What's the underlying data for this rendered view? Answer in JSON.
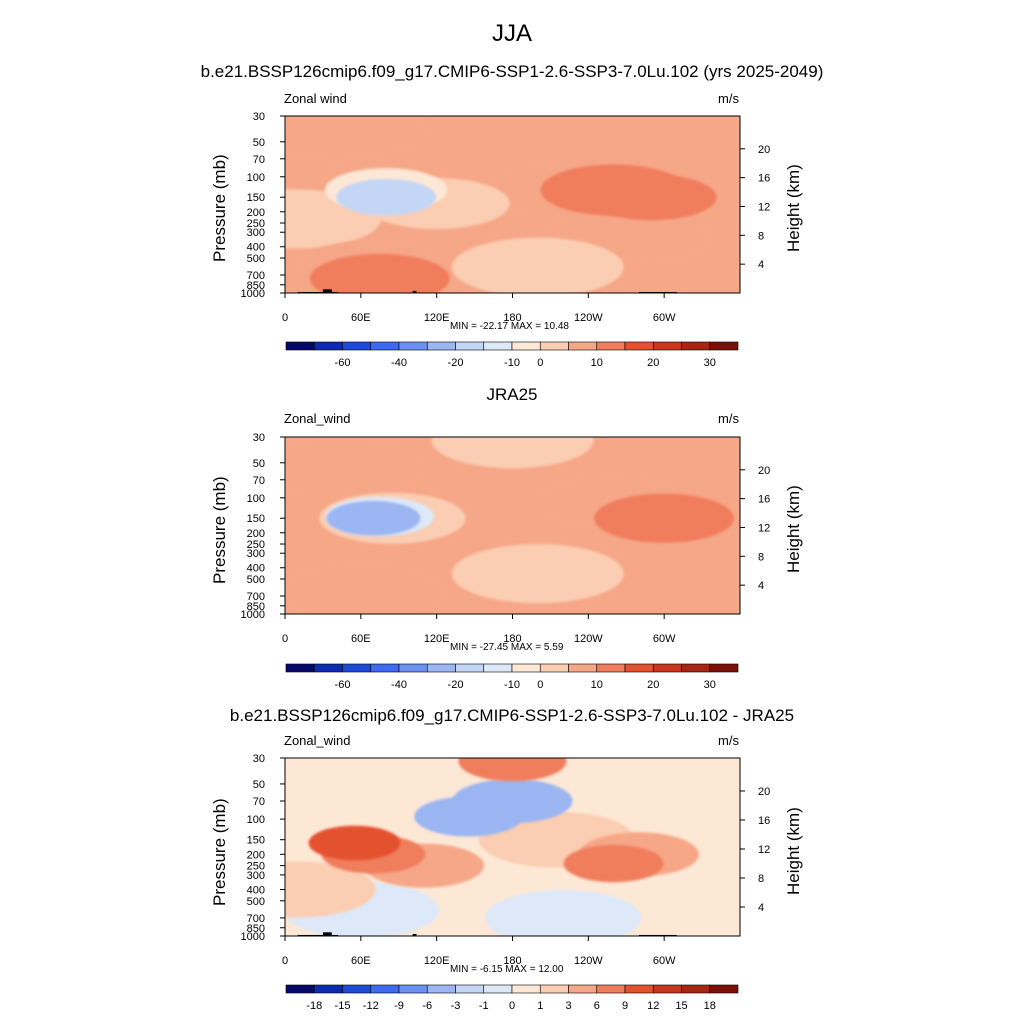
{
  "title": "JJA",
  "panels": [
    {
      "title": "b.e21.BSSP126cmip6.f09_g17.CMIP6-SSP1-2.6-SSP3-7.0Lu.102 (yrs 2025-2049)",
      "var_label": "Zonal wind",
      "units": "m/s",
      "stats": "MIN = -22.17  MAX =  10.48"
    },
    {
      "title": "JRA25",
      "var_label": "Zonal_wind",
      "units": "m/s",
      "stats": "MIN = -27.45  MAX =   5.59"
    },
    {
      "title": "b.e21.BSSP126cmip6.f09_g17.CMIP6-SSP1-2.6-SSP3-7.0Lu.102 - JRA25",
      "var_label": "Zonal_wind",
      "units": "m/s",
      "stats": "MIN =  -6.15  MAX =  12.00"
    }
  ],
  "axes": {
    "ylabel": "Pressure (mb)",
    "y2label": "Height (km)",
    "pressure_ticks": [
      "30",
      "50",
      "70",
      "100",
      "150",
      "200",
      "250",
      "300",
      "400",
      "500",
      "700",
      "850",
      "1000"
    ],
    "height_ticks": [
      "20",
      "16",
      "12",
      "8",
      "4"
    ],
    "lon_ticks": [
      "0",
      "60E",
      "120E",
      "180",
      "120W",
      "60W"
    ]
  },
  "colorbars": {
    "main_labels": [
      "-60",
      "-40",
      "-20",
      "-10",
      "0",
      "10",
      "20",
      "30"
    ],
    "diff_labels": [
      "-18",
      "-15",
      "-12",
      "-9",
      "-6",
      "-3",
      "-1",
      "0",
      "1",
      "3",
      "6",
      "9",
      "12",
      "15",
      "18"
    ],
    "colors": [
      "#08086b",
      "#0c2bb0",
      "#1e4ad8",
      "#3d6af0",
      "#6b92f2",
      "#9bb6f2",
      "#c4d6f5",
      "#dde9f8",
      "#fde8d6",
      "#fbcdb2",
      "#f6a788",
      "#f07e5d",
      "#e4512e",
      "#c8361c",
      "#a52612",
      "#7c1008"
    ]
  },
  "chart_data": [
    {
      "type": "heatmap",
      "title": "b.e21.BSSP126cmip6.f09_g17.CMIP6-SSP1-2.6-SSP3-7.0Lu.102 (yrs 2025-2049)",
      "variable": "Zonal wind",
      "units": "m/s",
      "x_axis": "longitude (0 to 360)",
      "y_axis": "pressure (mb), log scale, 30 to 1000",
      "min": -22.17,
      "max": 10.48,
      "features": [
        {
          "lon": 80,
          "pressure": 150,
          "value": -20
        },
        {
          "lon": 80,
          "pressure": 130,
          "value": -10
        },
        {
          "lon": 120,
          "pressure": 170,
          "value": -5
        },
        {
          "lon": 290,
          "pressure": 150,
          "value": 8
        },
        {
          "lon": 260,
          "pressure": 130,
          "value": 5
        },
        {
          "lon": 225,
          "pressure": 130,
          "value": 2
        },
        {
          "lon": 270,
          "pressure": 330,
          "value": 2
        },
        {
          "lon": 70,
          "pressure": 600,
          "value": 4
        },
        {
          "lon": 75,
          "pressure": 750,
          "value": 6
        },
        {
          "lon": 200,
          "pressure": 600,
          "value": -2
        },
        {
          "lon": 8,
          "pressure": 230,
          "value": -2
        },
        {
          "lon": 40,
          "pressure": 40,
          "value": 1
        }
      ]
    },
    {
      "type": "heatmap",
      "title": "JRA25",
      "variable": "Zonal_wind",
      "units": "m/s",
      "x_axis": "longitude (0 to 360)",
      "y_axis": "pressure (mb), log scale, 30 to 1000",
      "min": -27.45,
      "max": 5.59,
      "features": [
        {
          "lon": 70,
          "pressure": 150,
          "value": -25
        },
        {
          "lon": 75,
          "pressure": 145,
          "value": -15
        },
        {
          "lon": 85,
          "pressure": 150,
          "value": -5
        },
        {
          "lon": 180,
          "pressure": 32,
          "value": -3
        },
        {
          "lon": 260,
          "pressure": 110,
          "value": 3
        },
        {
          "lon": 300,
          "pressure": 150,
          "value": 6
        },
        {
          "lon": 200,
          "pressure": 450,
          "value": -2
        },
        {
          "lon": 60,
          "pressure": 650,
          "value": 2
        },
        {
          "lon": 40,
          "pressure": 55,
          "value": 1
        }
      ]
    },
    {
      "type": "heatmap",
      "title": "b.e21.BSSP126cmip6.f09_g17.CMIP6-SSP1-2.6-SSP3-7.0Lu.102 - JRA25",
      "variable": "Zonal_wind",
      "units": "m/s",
      "x_axis": "longitude (0 to 360)",
      "y_axis": "pressure (mb), log scale, 30 to 1000",
      "min": -6.15,
      "max": 12.0,
      "features": [
        {
          "lon": 180,
          "pressure": 32,
          "value": 6
        },
        {
          "lon": 180,
          "pressure": 70,
          "value": -4
        },
        {
          "lon": 145,
          "pressure": 95,
          "value": -6
        },
        {
          "lon": 55,
          "pressure": 160,
          "value": 11
        },
        {
          "lon": 70,
          "pressure": 200,
          "value": 7
        },
        {
          "lon": 110,
          "pressure": 250,
          "value": 4
        },
        {
          "lon": 280,
          "pressure": 200,
          "value": 4
        },
        {
          "lon": 260,
          "pressure": 240,
          "value": 8
        },
        {
          "lon": 215,
          "pressure": 150,
          "value": 1
        },
        {
          "lon": 60,
          "pressure": 600,
          "value": -1
        },
        {
          "lon": 220,
          "pressure": 700,
          "value": -1
        },
        {
          "lon": 10,
          "pressure": 400,
          "value": 1
        }
      ]
    }
  ]
}
